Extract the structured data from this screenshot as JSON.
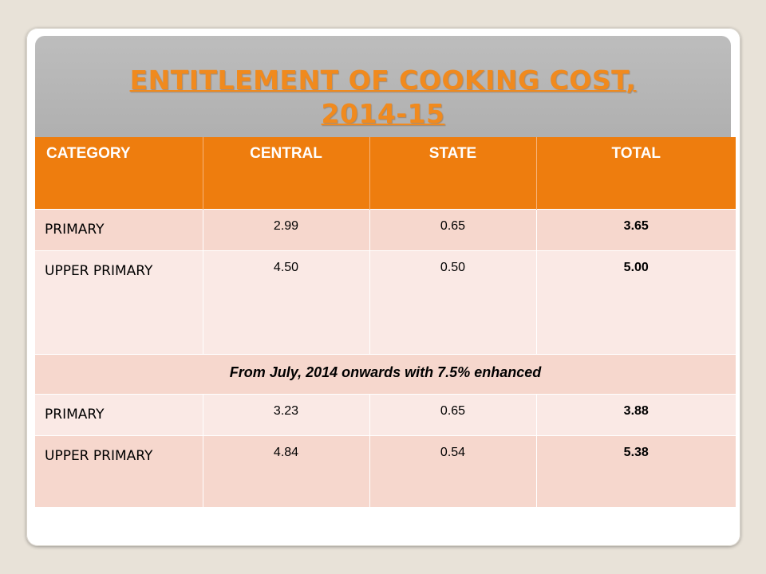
{
  "title": {
    "line1": "ENTITLEMENT OF COOKING COST,",
    "line2": "2014-15"
  },
  "table": {
    "headers": [
      "CATEGORY",
      "CENTRAL",
      "STATE",
      "TOTAL"
    ],
    "rows": [
      [
        "PRIMARY",
        "2.99",
        "0.65",
        "3.65"
      ],
      [
        "UPPER PRIMARY",
        "4.50",
        "0.50",
        "5.00"
      ],
      [
        "PRIMARY",
        "3.23",
        "0.65",
        "3.88"
      ],
      [
        "UPPER PRIMARY",
        "4.84",
        "0.54",
        "5.38"
      ]
    ],
    "note": "From July, 2014 onwards with 7.5% enhanced"
  },
  "colors": {
    "header_bg": "#ee7d0e",
    "title": "#f08a1e",
    "row_dark": "#f6d7cd",
    "row_light": "#fae9e5"
  }
}
